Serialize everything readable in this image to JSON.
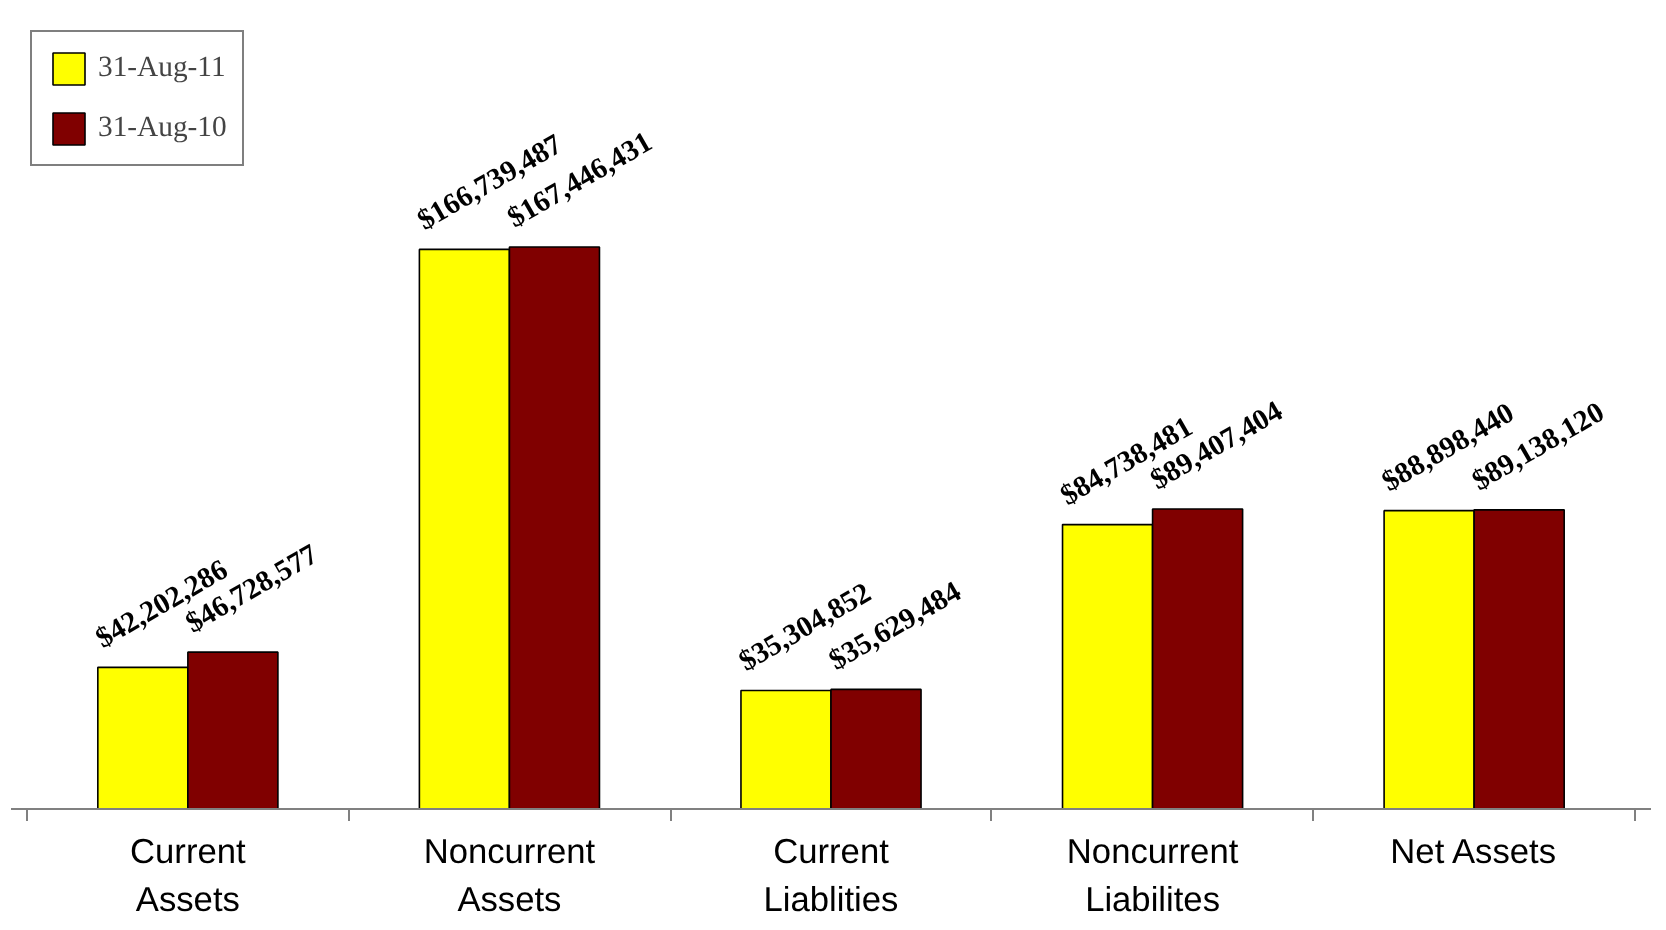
{
  "chart_data": {
    "type": "bar",
    "categories": [
      "Current\nAssets",
      "Noncurrent\nAssets",
      "Current\nLiablities",
      "Noncurrent\nLiabilites",
      "Net Assets"
    ],
    "series": [
      {
        "name": "31-Aug-11",
        "color": "#ffff00",
        "values": [
          42202286,
          166739487,
          35304852,
          84738481,
          88898440
        ],
        "value_labels": [
          "$42,202,286",
          "$166,739,487",
          "$35,304,852",
          "$84,738,481",
          "$88,898,440"
        ]
      },
      {
        "name": "31-Aug-10",
        "color": "#800000",
        "values": [
          46728577,
          167446431,
          35629484,
          89407404,
          89138120
        ],
        "value_labels": [
          "$46,728,577",
          "$167,446,431",
          "$35,629,484",
          "$89,407,404",
          "$89,138,120"
        ]
      }
    ],
    "legend": "top left",
    "grid": false
  }
}
